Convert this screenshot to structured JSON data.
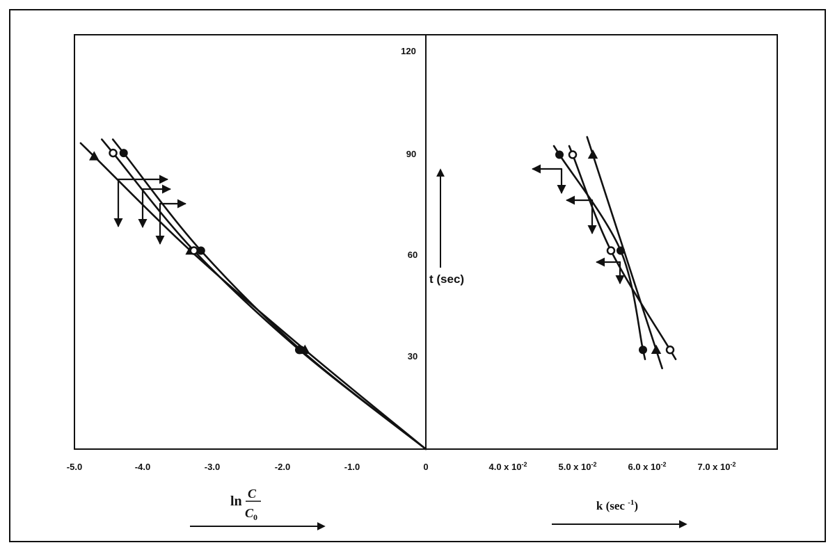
{
  "chart_data": [
    {
      "type": "line",
      "panel": "left",
      "y_axis_label": "t (sec)",
      "x_axis_label": {
        "prefix": "ln",
        "numerator": "C",
        "denominator": "C",
        "denominator_subscript": "0"
      },
      "x_tick_labels": [
        "-5.0",
        "-4.0",
        "-3.0",
        "-2.0",
        "-1.0",
        "0"
      ],
      "y_tick_labels": [
        "120",
        "90",
        "60",
        "30"
      ],
      "xlim": [
        -5.0,
        0
      ],
      "ylim": [
        0,
        120
      ],
      "grid": false,
      "series": [
        {
          "marker": "triangle",
          "x": [
            0,
            -1.72,
            -3.35,
            -4.72
          ],
          "y": [
            0,
            30,
            60,
            88.5
          ]
        },
        {
          "marker": "open-circle",
          "x": [
            0,
            -1.8,
            -3.3,
            -4.45
          ],
          "y": [
            0,
            30,
            60,
            89.5
          ]
        },
        {
          "marker": "filled-circle",
          "x": [
            0,
            -1.78,
            -3.2,
            -4.3
          ],
          "y": [
            0,
            30,
            60,
            89.5
          ]
        }
      ]
    },
    {
      "type": "line",
      "panel": "right",
      "x_axis_label": "k (sec -1)",
      "x_tick_labels": [
        {
          "base": "4.0 x 10",
          "exp": "-2"
        },
        {
          "base": "5.0 x 10",
          "exp": "-2"
        },
        {
          "base": "6.0 x 10",
          "exp": "-2"
        },
        {
          "base": "7.0 x 10",
          "exp": "-2"
        }
      ],
      "xlim": [
        0.032,
        0.082
      ],
      "ylim": [
        0,
        120
      ],
      "grid": false,
      "series": [
        {
          "marker": "filled-circle",
          "x": [
            0.0594,
            0.0562,
            0.0474
          ],
          "y": [
            30,
            60,
            89
          ]
        },
        {
          "marker": "open-circle",
          "x": [
            0.0633,
            0.0548,
            0.0493
          ],
          "y": [
            30,
            60,
            89
          ]
        },
        {
          "marker": "triangle",
          "x": [
            0.0613,
            0.0522
          ],
          "y": [
            30,
            89
          ]
        }
      ]
    }
  ]
}
